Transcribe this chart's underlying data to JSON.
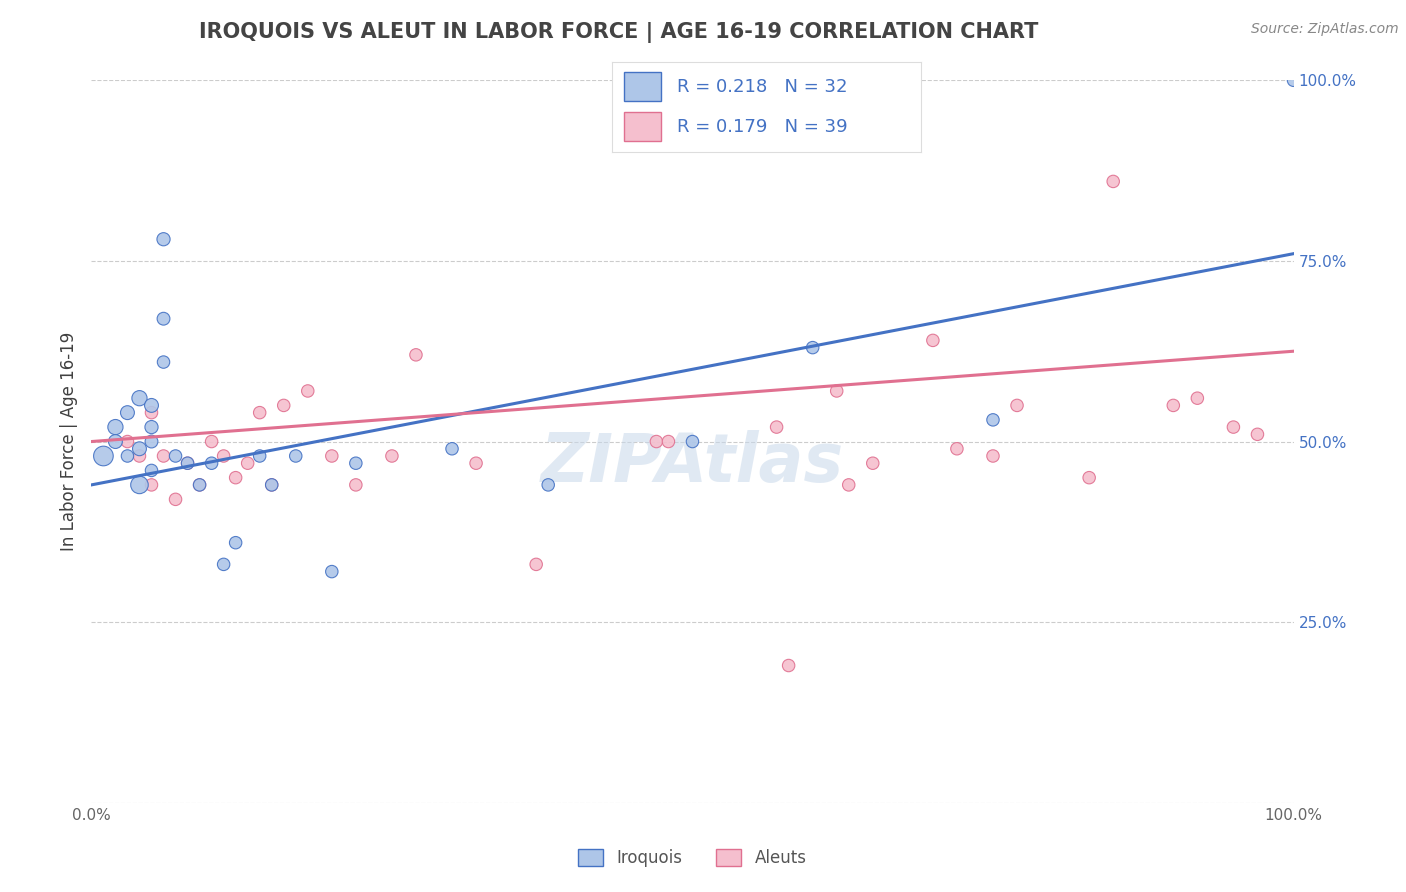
{
  "title": "IROQUOIS VS ALEUT IN LABOR FORCE | AGE 16-19 CORRELATION CHART",
  "source_text": "Source: ZipAtlas.com",
  "ylabel": "In Labor Force | Age 16-19",
  "xlim": [
    0,
    1
  ],
  "ylim": [
    0,
    1
  ],
  "watermark": "ZIPAtlas",
  "blue_color": "#aec6e8",
  "pink_color": "#f5bfce",
  "blue_line_color": "#4472c4",
  "pink_line_color": "#e07090",
  "title_color": "#444444",
  "grid_color": "#cccccc",
  "bg_color": "#ffffff",
  "iroquois_label": "Iroquois",
  "aleut_label": "Aleuts",
  "tick_label_color": "#4472c4",
  "iroquois_x": [
    0.01,
    0.02,
    0.02,
    0.03,
    0.03,
    0.04,
    0.04,
    0.04,
    0.05,
    0.05,
    0.05,
    0.05,
    0.06,
    0.06,
    0.06,
    0.07,
    0.08,
    0.09,
    0.1,
    0.11,
    0.12,
    0.14,
    0.15,
    0.17,
    0.2,
    0.22,
    0.3,
    0.38,
    0.5,
    0.6,
    0.75,
    1.0
  ],
  "iroquois_y": [
    0.48,
    0.52,
    0.5,
    0.54,
    0.48,
    0.56,
    0.49,
    0.44,
    0.55,
    0.52,
    0.5,
    0.46,
    0.78,
    0.67,
    0.61,
    0.48,
    0.47,
    0.44,
    0.47,
    0.33,
    0.36,
    0.48,
    0.44,
    0.48,
    0.32,
    0.47,
    0.49,
    0.44,
    0.5,
    0.63,
    0.53,
    1.0
  ],
  "aleut_x": [
    0.03,
    0.04,
    0.05,
    0.05,
    0.06,
    0.07,
    0.08,
    0.09,
    0.1,
    0.11,
    0.12,
    0.13,
    0.14,
    0.15,
    0.16,
    0.18,
    0.2,
    0.22,
    0.25,
    0.27,
    0.32,
    0.37,
    0.47,
    0.48,
    0.57,
    0.62,
    0.63,
    0.65,
    0.7,
    0.72,
    0.75,
    0.77,
    0.83,
    0.85,
    0.9,
    0.92,
    0.95,
    0.97,
    0.58
  ],
  "aleut_y": [
    0.5,
    0.48,
    0.54,
    0.44,
    0.48,
    0.42,
    0.47,
    0.44,
    0.5,
    0.48,
    0.45,
    0.47,
    0.54,
    0.44,
    0.55,
    0.57,
    0.48,
    0.44,
    0.48,
    0.62,
    0.47,
    0.33,
    0.5,
    0.5,
    0.52,
    0.57,
    0.44,
    0.47,
    0.64,
    0.49,
    0.48,
    0.55,
    0.45,
    0.86,
    0.55,
    0.56,
    0.52,
    0.51,
    0.19
  ],
  "iroquois_sizes": [
    200,
    120,
    100,
    100,
    80,
    120,
    100,
    160,
    100,
    90,
    85,
    80,
    90,
    85,
    80,
    80,
    80,
    80,
    80,
    80,
    80,
    80,
    80,
    80,
    80,
    80,
    80,
    80,
    80,
    80,
    80,
    80
  ],
  "aleut_sizes": [
    80,
    80,
    80,
    80,
    80,
    80,
    80,
    80,
    80,
    80,
    80,
    80,
    80,
    80,
    80,
    80,
    80,
    80,
    80,
    80,
    80,
    80,
    80,
    80,
    80,
    80,
    80,
    80,
    80,
    80,
    80,
    80,
    80,
    80,
    80,
    80,
    80,
    80,
    80
  ],
  "blue_trend_x0": 0.0,
  "blue_trend_y0": 0.44,
  "blue_trend_x1": 1.0,
  "blue_trend_y1": 0.76,
  "pink_trend_x0": 0.0,
  "pink_trend_y0": 0.5,
  "pink_trend_x1": 1.0,
  "pink_trend_y1": 0.625
}
